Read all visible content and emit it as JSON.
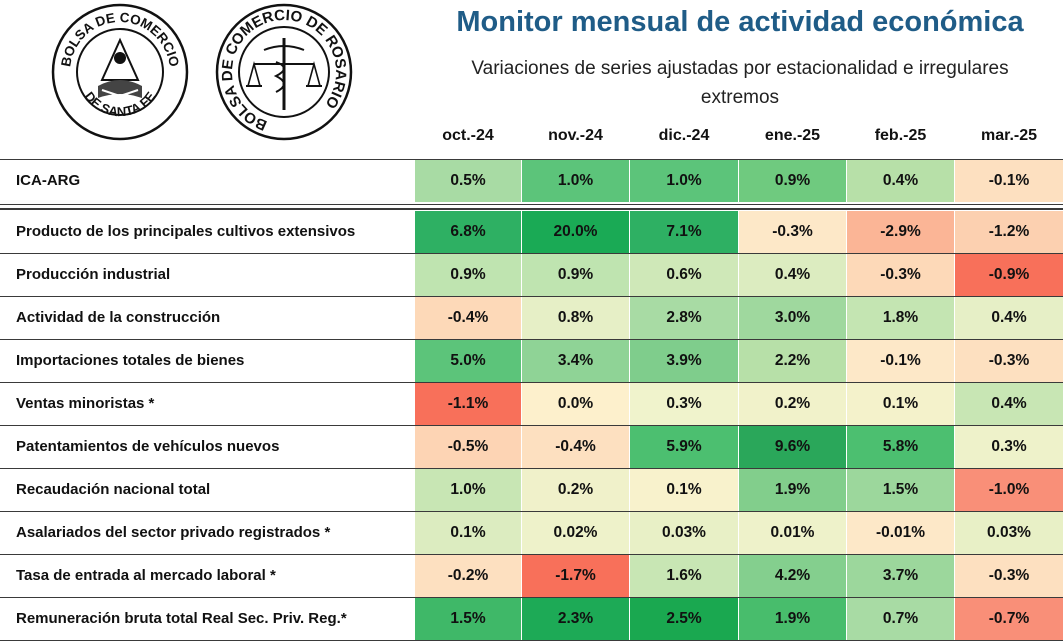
{
  "title": "Monitor mensual de actividad económica",
  "subtitle_line1": "Variaciones de series ajustadas por estacionalidad e irregulares",
  "subtitle_line2": "extremos",
  "logos": [
    {
      "name": "bolsa-comercio-santa-fe-seal",
      "text_top": "BOLSA DE COMERCIO",
      "text_bottom": "DE SANTA FE"
    },
    {
      "name": "bolsa-comercio-rosario-seal",
      "text": "BOLSA DE COMERCIO DE ROSARIO"
    }
  ],
  "colors": {
    "title": "#1f5c87",
    "strong_green": "#2eb063",
    "neutral": "#fdf0cc",
    "strong_red": "#f8705a"
  },
  "chart_data": {
    "type": "table",
    "columns": [
      "oct.-24",
      "nov.-24",
      "dic.-24",
      "ene.-25",
      "feb.-25",
      "mar.-25"
    ],
    "rows": [
      {
        "label": "ICA-ARG",
        "cells": [
          "0.5%",
          "1.0%",
          "1.0%",
          "0.9%",
          "0.4%",
          "-0.1%"
        ]
      },
      {
        "label": "Producto de los principales cultivos extensivos",
        "cells": [
          "6.8%",
          "20.0%",
          "7.1%",
          "-0.3%",
          "-2.9%",
          "-1.2%"
        ]
      },
      {
        "label": "Producción industrial",
        "cells": [
          "0.9%",
          "0.9%",
          "0.6%",
          "0.4%",
          "-0.3%",
          "-0.9%"
        ]
      },
      {
        "label": "Actividad de la construcción",
        "cells": [
          "-0.4%",
          "0.8%",
          "2.8%",
          "3.0%",
          "1.8%",
          "0.4%"
        ]
      },
      {
        "label": "Importaciones totales de bienes",
        "cells": [
          "5.0%",
          "3.4%",
          "3.9%",
          "2.2%",
          "-0.1%",
          "-0.3%"
        ]
      },
      {
        "label": "Ventas minoristas *",
        "cells": [
          "-1.1%",
          "0.0%",
          "0.3%",
          "0.2%",
          "0.1%",
          "0.4%"
        ]
      },
      {
        "label": "Patentamientos de vehículos nuevos",
        "cells": [
          "-0.5%",
          "-0.4%",
          "5.9%",
          "9.6%",
          "5.8%",
          "0.3%"
        ]
      },
      {
        "label": "Recaudación nacional total",
        "cells": [
          "1.0%",
          "0.2%",
          "0.1%",
          "1.9%",
          "1.5%",
          "-1.0%"
        ]
      },
      {
        "label": "Asalariados del sector privado registrados *",
        "cells": [
          "0.1%",
          "0.02%",
          "0.03%",
          "0.01%",
          "-0.01%",
          "0.03%"
        ]
      },
      {
        "label": "Tasa de entrada al mercado laboral *",
        "cells": [
          "-0.2%",
          "-1.7%",
          "1.6%",
          "4.2%",
          "3.7%",
          "-0.3%"
        ]
      },
      {
        "label": "Remuneración bruta total Real Sec. Priv. Reg.*",
        "cells": [
          "1.5%",
          "2.3%",
          "2.5%",
          "1.9%",
          "0.7%",
          "-0.7%"
        ]
      }
    ],
    "cell_colors": [
      [
        "#a8dba4",
        "#5cc47a",
        "#5cc47a",
        "#6fca7f",
        "#b7e0a8",
        "#fde0c0"
      ],
      [
        "#2eb063",
        "#1aaa55",
        "#2eb063",
        "#fde8c8",
        "#fbb596",
        "#fcd0b0"
      ],
      [
        "#bfe4b0",
        "#bfe4b0",
        "#cfe8b8",
        "#dcecc0",
        "#fdd9b8",
        "#f8705a"
      ],
      [
        "#fdd9b8",
        "#e6efc6",
        "#a8dba4",
        "#9fd89e",
        "#c4e5b2",
        "#e6efc6"
      ],
      [
        "#5cc47a",
        "#8fd396",
        "#7fcd8c",
        "#b7e0a8",
        "#fde8c8",
        "#fde0c0"
      ],
      [
        "#f8705a",
        "#fdf0cc",
        "#f0f3cc",
        "#f1f2ca",
        "#f4f2cb",
        "#c8e6b4"
      ],
      [
        "#fdd4b4",
        "#fde0c0",
        "#4cbf70",
        "#2aa75a",
        "#4cbf70",
        "#eef2ca"
      ],
      [
        "#c8e6b4",
        "#f0f1ca",
        "#f8f2cc",
        "#82ce8c",
        "#9cd79c",
        "#f98f78"
      ],
      [
        "#dcecc0",
        "#eef2ca",
        "#e8f0c6",
        "#eef2ca",
        "#fde8c8",
        "#e8f0c6"
      ],
      [
        "#fde0c0",
        "#f8705a",
        "#c8e6b4",
        "#84cf8e",
        "#9cd79c",
        "#fde0c0"
      ],
      [
        "#3fb868",
        "#1daa56",
        "#1aa850",
        "#48bd6c",
        "#a8dba4",
        "#f98f78"
      ]
    ]
  }
}
